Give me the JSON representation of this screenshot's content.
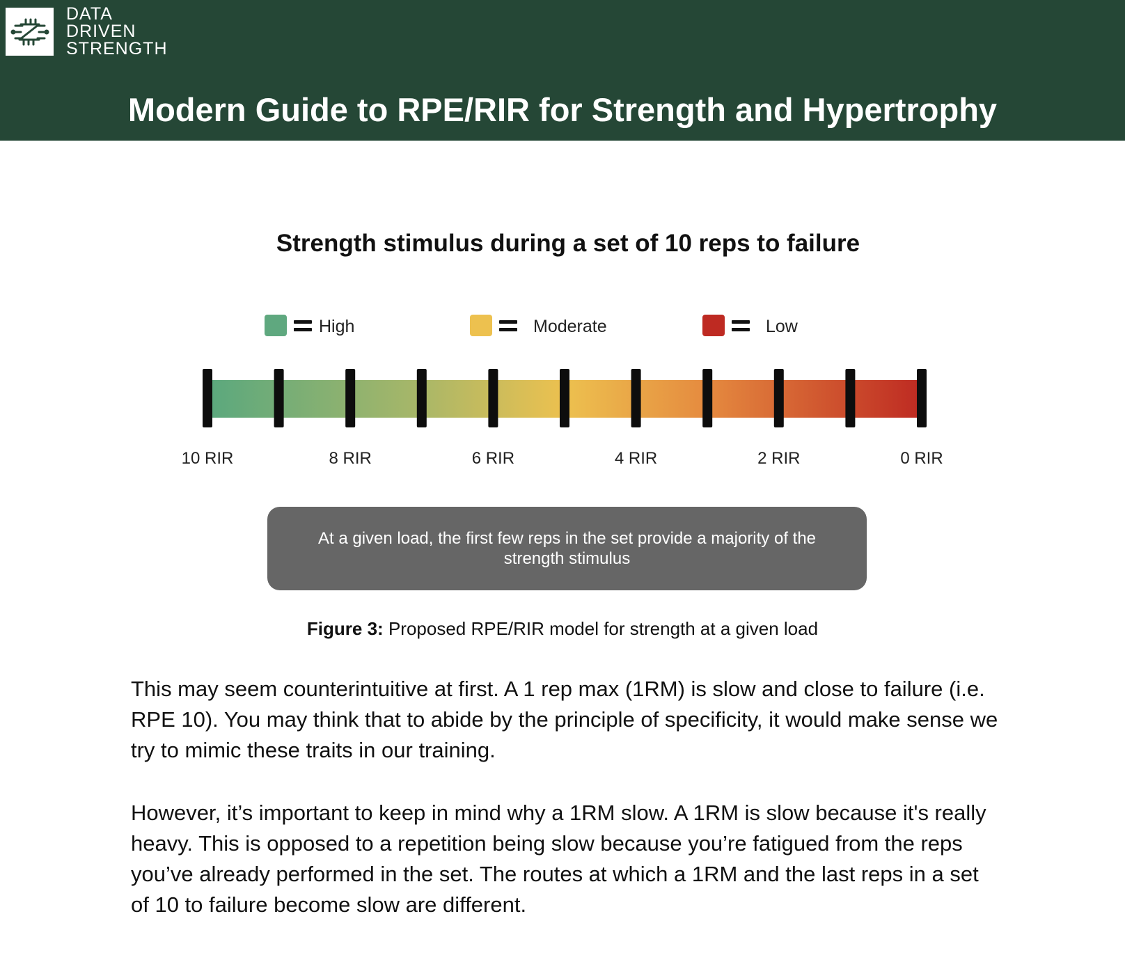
{
  "header": {
    "brand_lines": [
      "DATA",
      "DRIVEN",
      "STRENGTH"
    ],
    "title": "Modern Guide to RPE/RIR for Strength and Hypertrophy",
    "background_color": "#254736",
    "logo_icon": "barbell-circuit-logo-icon"
  },
  "chart_data": {
    "type": "gradient-scale",
    "title": "Strength stimulus during a set of 10 reps to failure",
    "legend": [
      {
        "label": "High",
        "color": "#5fa87f"
      },
      {
        "label": "Moderate",
        "color": "#edc14f"
      },
      {
        "label": "Low",
        "color": "#be2a22"
      }
    ],
    "x": [
      10,
      9,
      8,
      7,
      6,
      5,
      4,
      3,
      2,
      1,
      0
    ],
    "unit": "RIR",
    "tick_labels": [
      "10 RIR",
      "8 RIR",
      "6 RIR",
      "4 RIR",
      "2 RIR",
      "0 RIR"
    ],
    "gradient_stops": [
      {
        "x": 10,
        "color": "#5aa87e"
      },
      {
        "x": 7,
        "color": "#a9b768"
      },
      {
        "x": 5,
        "color": "#edc14f"
      },
      {
        "x": 3,
        "color": "#e58a3f"
      },
      {
        "x": 0,
        "color": "#be2a22"
      }
    ]
  },
  "callout": "At a given load, the first few reps in the set provide a majority of the strength stimulus",
  "caption": {
    "label": "Figure 3:",
    "text": "Proposed RPE/RIR model for strength at a given load"
  },
  "paragraphs": [
    "This may seem counterintuitive at first. A 1 rep max (1RM) is slow and close to failure (i.e. RPE 10). You may think that to abide by the principle of specificity, it would make sense we try to mimic these traits in our training.",
    "However, it’s important to keep in mind why a 1RM slow. A 1RM is slow because it's really heavy. This is opposed to a repetition being slow because you’re fatigued from the reps you’ve already performed in the set. The routes at which a 1RM and the last reps in a set of 10 to failure become slow are different."
  ]
}
